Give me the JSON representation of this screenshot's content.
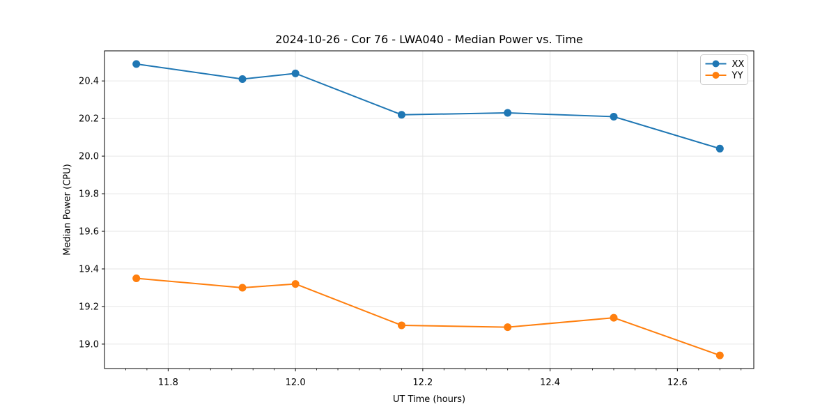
{
  "chart_data": {
    "type": "line",
    "title": "2024-10-26 - Cor 76 - LWA040 - Median Power vs. Time",
    "xlabel": "UT Time (hours)",
    "ylabel": "Median Power (CPU)",
    "x": [
      11.75,
      11.9167,
      12.0,
      12.1667,
      12.3333,
      12.5,
      12.6667
    ],
    "series": [
      {
        "name": "XX",
        "color": "#1f77b4",
        "values": [
          20.49,
          20.41,
          20.44,
          20.22,
          20.23,
          20.21,
          20.04
        ]
      },
      {
        "name": "YY",
        "color": "#ff7f0e",
        "values": [
          19.35,
          19.3,
          19.32,
          19.1,
          19.09,
          19.14,
          18.94
        ]
      }
    ],
    "xlim": [
      11.7,
      12.72
    ],
    "ylim": [
      18.87,
      20.56
    ],
    "xticks": [
      11.8,
      12.0,
      12.2,
      12.4,
      12.6
    ],
    "yticks": [
      19.0,
      19.2,
      19.4,
      19.6,
      19.8,
      20.0,
      20.2,
      20.4
    ],
    "x_minor_step": 0.0333333,
    "grid": true,
    "grid_color": "#e6e6e6",
    "legend": {
      "position": "upper right",
      "entries": [
        "XX",
        "YY"
      ],
      "border_color": "#cccccc"
    },
    "marker": "circle"
  }
}
